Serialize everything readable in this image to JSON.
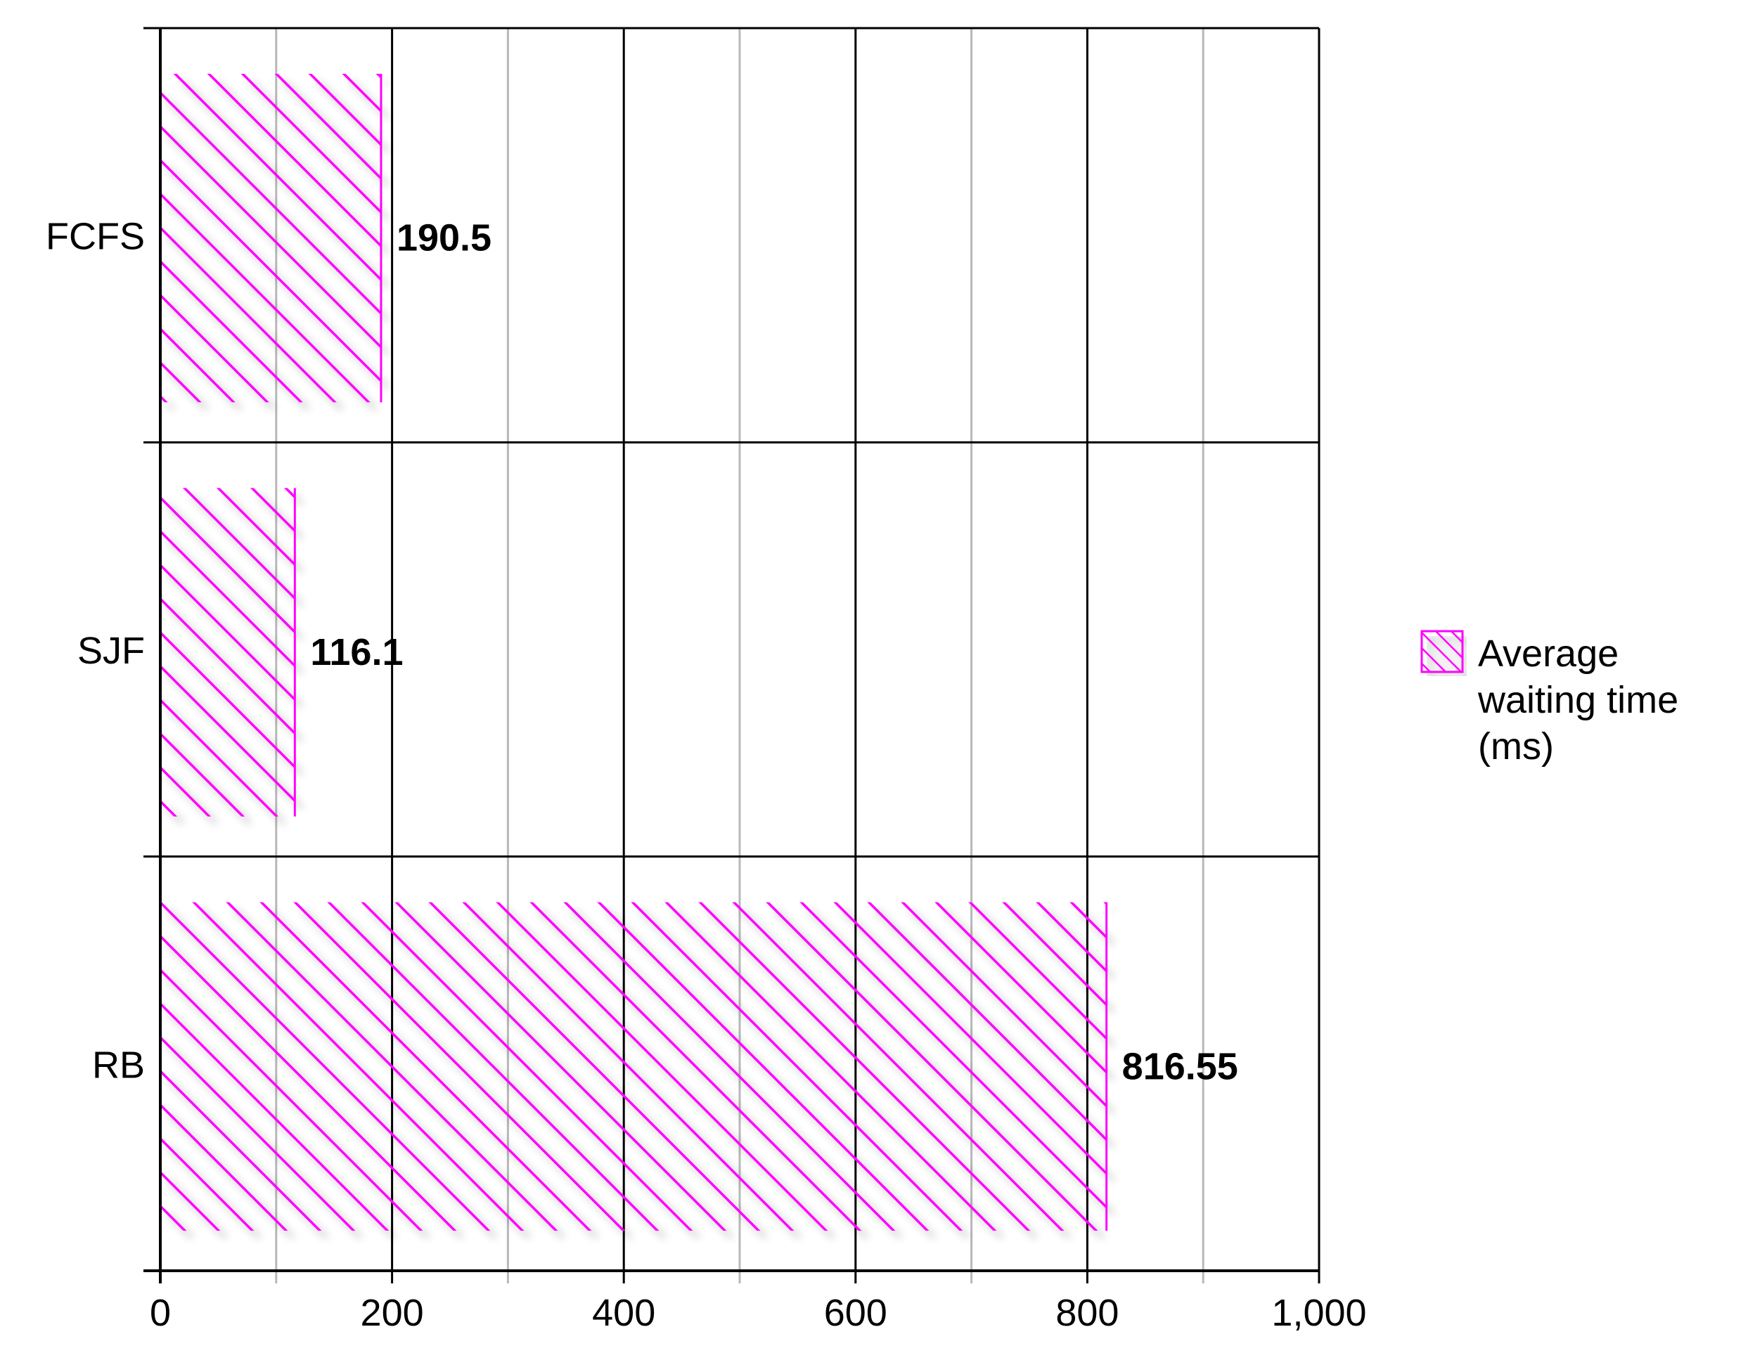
{
  "chart_data": {
    "type": "bar",
    "orientation": "horizontal",
    "categories": [
      "FCFS",
      "SJF",
      "RB"
    ],
    "series": [
      {
        "name": "Average waiting time (ms)",
        "legend_lines": [
          "Average",
          "waiting time",
          "(ms)"
        ],
        "values": [
          190.5,
          116.1,
          816.55
        ],
        "data_labels": [
          "190.5",
          "116.1",
          "816.55"
        ],
        "color": "#ff00ff",
        "fill": "diagonal-hatch"
      }
    ],
    "xlim": [
      0,
      1000
    ],
    "major_ticks": [
      0,
      200,
      400,
      600,
      800,
      1000
    ],
    "tick_labels": [
      "0",
      "200",
      "400",
      "600",
      "800",
      "1,000"
    ],
    "minor_gridlines": [
      100,
      300,
      500,
      700,
      900
    ],
    "grid": true,
    "legend_position": "right",
    "title": "",
    "xlabel": "",
    "ylabel": ""
  }
}
